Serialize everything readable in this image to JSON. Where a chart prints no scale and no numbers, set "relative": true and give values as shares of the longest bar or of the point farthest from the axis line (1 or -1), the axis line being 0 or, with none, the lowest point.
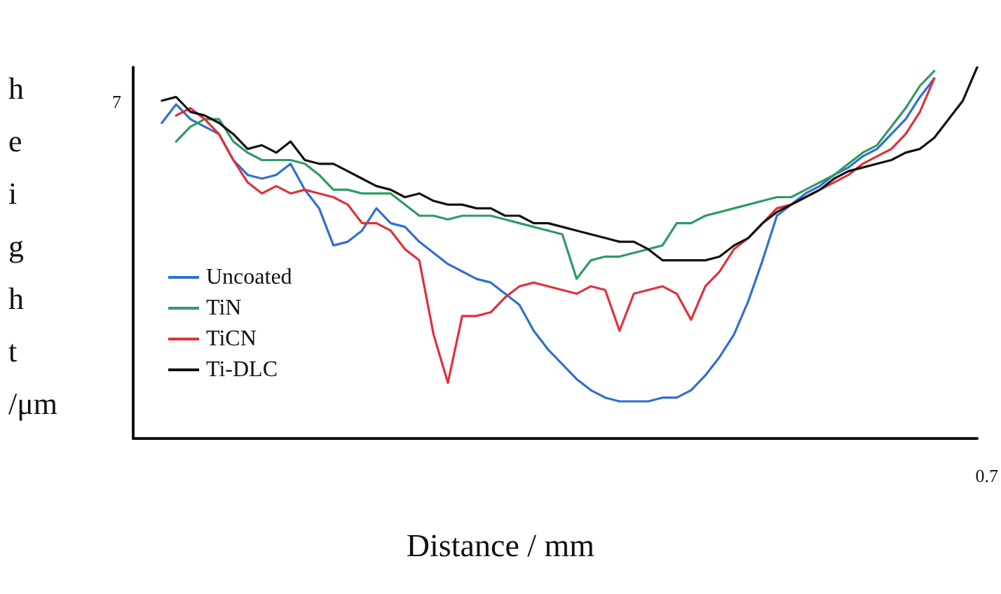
{
  "chart_data": {
    "type": "line",
    "relative": true,
    "xlabel": "Distance / mm",
    "ylabel": "height /μm",
    "annotations": [
      "7",
      "0.7"
    ],
    "legend": "left",
    "grid": false,
    "marker": "none",
    "line_style": "solid",
    "categories": [
      null,
      null,
      null,
      null,
      null,
      null,
      null,
      null,
      null,
      null,
      null,
      null,
      null,
      null,
      null,
      null,
      null,
      null,
      null,
      null,
      null,
      null,
      null,
      null,
      null,
      null,
      null,
      null,
      null,
      null,
      null,
      null,
      null,
      null,
      null,
      null,
      null,
      null,
      null,
      null,
      null,
      null,
      null,
      null,
      null,
      null,
      null,
      null,
      null,
      null,
      null,
      null,
      null,
      null,
      null,
      null,
      null,
      null,
      null,
      null
    ],
    "series": [
      {
        "name": "Uncoated",
        "color": "#2f6fd2",
        "values": [
          null,
          null,
          0.85,
          0.9,
          0.86,
          0.84,
          0.82,
          0.75,
          0.71,
          0.7,
          0.71,
          0.74,
          0.67,
          0.62,
          0.52,
          0.53,
          0.56,
          0.62,
          0.58,
          0.57,
          0.53,
          0.5,
          0.47,
          0.45,
          0.43,
          0.42,
          0.39,
          0.36,
          0.29,
          0.24,
          0.2,
          0.16,
          0.13,
          0.11,
          0.1,
          0.1,
          0.1,
          0.11,
          0.11,
          0.13,
          0.17,
          0.22,
          0.28,
          0.37,
          0.48,
          0.6,
          0.63,
          0.66,
          0.68,
          0.71,
          0.73,
          0.76,
          0.78,
          0.82,
          0.86,
          0.92,
          0.97,
          null,
          null,
          null
        ]
      },
      {
        "name": "TiN",
        "color": "#2e9a62",
        "values": [
          null,
          null,
          null,
          0.8,
          0.84,
          0.86,
          0.86,
          0.8,
          0.77,
          0.75,
          0.75,
          0.75,
          0.74,
          0.71,
          0.67,
          0.67,
          0.66,
          0.66,
          0.66,
          0.63,
          0.6,
          0.6,
          0.59,
          0.6,
          0.6,
          0.6,
          0.59,
          0.58,
          0.57,
          0.56,
          0.55,
          0.43,
          0.48,
          0.49,
          0.49,
          0.5,
          0.51,
          0.52,
          0.58,
          0.58,
          0.6,
          0.61,
          0.62,
          0.63,
          0.64,
          0.65,
          0.65,
          0.67,
          0.69,
          0.71,
          0.74,
          0.77,
          0.79,
          0.84,
          0.89,
          0.95,
          0.99,
          null,
          null,
          null
        ]
      },
      {
        "name": "TiCN",
        "color": "#e0303a",
        "values": [
          null,
          null,
          null,
          0.87,
          0.89,
          0.86,
          0.82,
          0.75,
          0.69,
          0.66,
          0.68,
          0.66,
          0.67,
          0.66,
          0.65,
          0.63,
          0.58,
          0.58,
          0.56,
          0.51,
          0.48,
          0.28,
          0.15,
          0.33,
          0.33,
          0.34,
          0.38,
          0.41,
          0.42,
          0.41,
          0.4,
          0.39,
          0.41,
          0.4,
          0.29,
          0.39,
          0.4,
          0.41,
          0.39,
          0.32,
          0.41,
          0.45,
          0.51,
          0.54,
          0.58,
          0.62,
          0.63,
          0.65,
          0.67,
          0.69,
          0.71,
          0.74,
          0.76,
          0.78,
          0.82,
          0.88,
          0.97,
          null,
          null,
          null
        ]
      },
      {
        "name": "Ti-DLC",
        "color": "#111111",
        "values": [
          null,
          null,
          0.91,
          0.92,
          0.88,
          0.87,
          0.85,
          0.82,
          0.78,
          0.79,
          0.77,
          0.8,
          0.75,
          0.74,
          0.74,
          0.72,
          0.7,
          0.68,
          0.67,
          0.65,
          0.66,
          0.64,
          0.63,
          0.63,
          0.62,
          0.62,
          0.6,
          0.6,
          0.58,
          0.58,
          0.57,
          0.56,
          0.55,
          0.54,
          0.53,
          0.53,
          0.51,
          0.48,
          0.48,
          0.48,
          0.48,
          0.49,
          0.52,
          0.54,
          0.58,
          0.61,
          0.63,
          0.65,
          0.67,
          0.7,
          0.72,
          0.73,
          0.74,
          0.75,
          0.77,
          0.78,
          0.81,
          0.86,
          0.91,
          1.0
        ]
      }
    ]
  }
}
